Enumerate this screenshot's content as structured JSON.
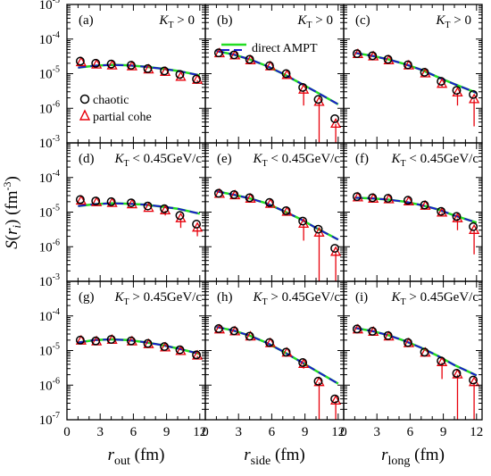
{
  "chart_data": {
    "type": "scatter",
    "y_scale": "log",
    "ylim": [
      1e-07,
      0.001
    ],
    "xlim": [
      0,
      12.5
    ],
    "ylabel_parts": {
      "S": "S",
      "paren_open": "(",
      "r": "r",
      "sub": "i",
      "paren_close": ")",
      "unit": "(fm",
      "unit_exp": "-3",
      "unit_close": ")"
    },
    "y_ticks": [
      {
        "value": 0.001,
        "base": "10",
        "exp": "-3"
      },
      {
        "value": 0.0001,
        "base": "10",
        "exp": "-4"
      },
      {
        "value": 1e-05,
        "base": "10",
        "exp": "-5"
      },
      {
        "value": 1e-06,
        "base": "10",
        "exp": "-6"
      },
      {
        "value": 1e-07,
        "base": "10",
        "exp": "-7"
      }
    ],
    "x_ticks": [
      {
        "value": 0,
        "label": "0"
      },
      {
        "value": 3,
        "label": "3"
      },
      {
        "value": 6,
        "label": "6"
      },
      {
        "value": 9,
        "label": "9"
      },
      {
        "value": 12,
        "label": "12"
      }
    ],
    "x_titles": [
      {
        "main": "r",
        "sub": "out",
        "unit": "(fm)"
      },
      {
        "main": "r",
        "sub": "side",
        "unit": "(fm)"
      },
      {
        "main": "r",
        "sub": "long",
        "unit": "(fm)"
      }
    ],
    "legend_markers": [
      {
        "label": "chaotic",
        "marker": "circle"
      },
      {
        "label": "partial cohe",
        "marker": "triangle"
      }
    ],
    "legend_lines": [
      {
        "label": "direct AMPT"
      }
    ],
    "colors": {
      "chaotic": "#000000",
      "partial": "#e8000b",
      "line_green": "#22dd22",
      "line_blue": "#1a1acc"
    },
    "cut_labels": [
      {
        "k": "K",
        "sub": "T",
        "rest": " > 0"
      },
      {
        "k": "K",
        "sub": "T",
        "rest": " < 0.45GeV/c"
      },
      {
        "k": "K",
        "sub": "T",
        "rest": " > 0.45GeV/c"
      }
    ],
    "x_points": [
      1.2,
      2.6,
      4.0,
      5.8,
      7.3,
      8.8,
      10.2,
      11.7
    ],
    "panels": [
      {
        "letter": "(a)",
        "chaotic": [
          2.3e-05,
          2e-05,
          1.9e-05,
          1.75e-05,
          1.4e-05,
          1.2e-05,
          9.5e-06,
          7e-06
        ],
        "partial": [
          2.1e-05,
          1.8e-05,
          1.7e-05,
          1.6e-05,
          1.3e-05,
          1.1e-05,
          8e-06,
          6.5e-06
        ],
        "err_lo": [
          2.1e-05,
          1.8e-05,
          1.7e-05,
          1.6e-05,
          1.3e-05,
          1.1e-05,
          7e-06,
          5.5e-06
        ],
        "line": [
          [
            1.0,
            1.5e-05
          ],
          [
            2.5,
            1.7e-05
          ],
          [
            4.0,
            1.8e-05
          ],
          [
            5.5,
            1.75e-05
          ],
          [
            7.0,
            1.6e-05
          ],
          [
            8.5,
            1.4e-05
          ],
          [
            10.0,
            1.2e-05
          ],
          [
            12.0,
            9e-06
          ]
        ]
      },
      {
        "letter": "(b)",
        "chaotic": [
          4e-05,
          3.5e-05,
          2.6e-05,
          1.7e-05,
          1e-05,
          4e-06,
          1.8e-06,
          5e-07
        ],
        "partial": [
          3.8e-05,
          3.3e-05,
          2.4e-05,
          1.6e-05,
          9e-06,
          3.4e-06,
          1.5e-06,
          3.5e-07
        ],
        "err_lo": [
          3.8e-05,
          3.3e-05,
          2.4e-05,
          1.6e-05,
          9e-06,
          1.2e-06,
          1e-07,
          1e-07
        ],
        "line": [
          [
            1.0,
            4.5e-05
          ],
          [
            2.5,
            3.6e-05
          ],
          [
            4.0,
            2.6e-05
          ],
          [
            5.5,
            1.7e-05
          ],
          [
            7.0,
            1e-05
          ],
          [
            8.5,
            5.5e-06
          ],
          [
            10.0,
            3e-06
          ],
          [
            12.0,
            1.3e-06
          ]
        ]
      },
      {
        "letter": "(c)",
        "chaotic": [
          3.8e-05,
          3.3e-05,
          2.6e-05,
          1.8e-05,
          1.1e-05,
          6e-06,
          3.3e-06,
          2.5e-06
        ],
        "partial": [
          3.6e-05,
          3.1e-05,
          2.4e-05,
          1.7e-05,
          1e-05,
          5e-06,
          2.8e-06,
          1.8e-06
        ],
        "err_lo": [
          3.6e-05,
          3.1e-05,
          2.4e-05,
          1.7e-05,
          1e-05,
          4e-06,
          1.2e-06,
          3e-07
        ],
        "line": [
          [
            1.0,
            4e-05
          ],
          [
            2.5,
            3.3e-05
          ],
          [
            4.0,
            2.6e-05
          ],
          [
            5.5,
            1.9e-05
          ],
          [
            7.0,
            1.3e-05
          ],
          [
            8.5,
            8e-06
          ],
          [
            10.0,
            5e-06
          ],
          [
            12.0,
            2.8e-06
          ]
        ]
      },
      {
        "letter": "(d)",
        "chaotic": [
          2.3e-05,
          2.1e-05,
          2e-05,
          1.85e-05,
          1.5e-05,
          1.25e-05,
          8e-06,
          4.5e-06
        ],
        "partial": [
          2.1e-05,
          1.9e-05,
          1.8e-05,
          1.65e-05,
          1.3e-05,
          1.1e-05,
          6.5e-06,
          3.5e-06
        ],
        "err_lo": [
          2.1e-05,
          1.9e-05,
          1.8e-05,
          1.65e-05,
          1.3e-05,
          8e-06,
          3.5e-06,
          2e-06
        ],
        "line": [
          [
            1.0,
            1.5e-05
          ],
          [
            2.5,
            1.7e-05
          ],
          [
            4.0,
            1.8e-05
          ],
          [
            5.5,
            1.75e-05
          ],
          [
            7.0,
            1.65e-05
          ],
          [
            8.5,
            1.45e-05
          ],
          [
            10.0,
            1.25e-05
          ],
          [
            12.0,
            9e-06
          ]
        ]
      },
      {
        "letter": "(e)",
        "chaotic": [
          3.5e-05,
          3.2e-05,
          2.6e-05,
          1.9e-05,
          1.1e-05,
          5.5e-06,
          3.2e-06,
          9e-07
        ],
        "partial": [
          3.3e-05,
          3e-05,
          2.4e-05,
          1.7e-05,
          1e-05,
          4.5e-06,
          2.5e-06,
          7e-07
        ],
        "err_lo": [
          3.3e-05,
          3e-05,
          2.4e-05,
          1.7e-05,
          8e-06,
          1.5e-06,
          1e-07,
          1e-07
        ],
        "line": [
          [
            1.0,
            4e-05
          ],
          [
            2.5,
            3.2e-05
          ],
          [
            4.0,
            2.5e-05
          ],
          [
            5.5,
            1.8e-05
          ],
          [
            7.0,
            1.1e-05
          ],
          [
            8.5,
            6.5e-06
          ],
          [
            10.0,
            3.5e-06
          ],
          [
            12.0,
            1.6e-06
          ]
        ]
      },
      {
        "letter": "(f)",
        "chaotic": [
          2.8e-05,
          2.6e-05,
          2.5e-05,
          2.2e-05,
          1.6e-05,
          1.05e-05,
          7.5e-06,
          3.8e-06
        ],
        "partial": [
          2.6e-05,
          2.4e-05,
          2.3e-05,
          2e-05,
          1.5e-05,
          9.5e-06,
          6.5e-06,
          3e-06
        ],
        "err_lo": [
          2.6e-05,
          2.4e-05,
          2.3e-05,
          2e-05,
          1.5e-05,
          8e-06,
          3e-06,
          6e-07
        ],
        "line": [
          [
            1.0,
            2.6e-05
          ],
          [
            2.5,
            2.5e-05
          ],
          [
            4.0,
            2.3e-05
          ],
          [
            5.5,
            2e-05
          ],
          [
            7.0,
            1.6e-05
          ],
          [
            8.5,
            1.2e-05
          ],
          [
            10.0,
            8e-06
          ],
          [
            12.0,
            5e-06
          ]
        ]
      },
      {
        "letter": "(g)",
        "chaotic": [
          2e-05,
          1.9e-05,
          2.1e-05,
          1.9e-05,
          1.6e-05,
          1.3e-05,
          1.05e-05,
          7.5e-06
        ],
        "partial": [
          1.9e-05,
          1.8e-05,
          2e-05,
          1.8e-05,
          1.5e-05,
          1.2e-05,
          9.5e-06,
          7e-06
        ],
        "err_lo": [
          1.9e-05,
          1.8e-05,
          2e-05,
          1.8e-05,
          1.5e-05,
          1.2e-05,
          8.5e-06,
          6e-06
        ],
        "line": [
          [
            1.0,
            1.7e-05
          ],
          [
            2.5,
            2e-05
          ],
          [
            4.0,
            2.1e-05
          ],
          [
            5.5,
            2e-05
          ],
          [
            7.0,
            1.75e-05
          ],
          [
            8.5,
            1.45e-05
          ],
          [
            10.0,
            1.15e-05
          ],
          [
            12.0,
            8e-06
          ]
        ]
      },
      {
        "letter": "(h)",
        "chaotic": [
          4.3e-05,
          3.7e-05,
          2.6e-05,
          1.7e-05,
          9e-06,
          4.5e-06,
          1.3e-06,
          4e-07
        ],
        "partial": [
          4e-05,
          3.5e-05,
          2.5e-05,
          1.6e-05,
          8.5e-06,
          4e-06,
          1.2e-06,
          3.5e-07
        ],
        "err_lo": [
          4e-05,
          3.5e-05,
          2.5e-05,
          1.6e-05,
          8.5e-06,
          3e-06,
          1e-07,
          1e-07
        ],
        "line": [
          [
            1.0,
            4.8e-05
          ],
          [
            2.5,
            3.8e-05
          ],
          [
            4.0,
            2.7e-05
          ],
          [
            5.5,
            1.7e-05
          ],
          [
            7.0,
            9.5e-06
          ],
          [
            8.5,
            5e-06
          ],
          [
            10.0,
            2.6e-06
          ],
          [
            12.0,
            1.1e-06
          ]
        ]
      },
      {
        "letter": "(i)",
        "chaotic": [
          4.2e-05,
          3.6e-05,
          2.7e-05,
          1.7e-05,
          9e-06,
          5e-06,
          2.2e-06,
          1.4e-06
        ],
        "partial": [
          4e-05,
          3.4e-05,
          2.5e-05,
          1.6e-05,
          8.5e-06,
          4.5e-06,
          2e-06,
          1.2e-06
        ],
        "err_lo": [
          4e-05,
          3.4e-05,
          2.5e-05,
          1.6e-05,
          8.5e-06,
          1.5e-06,
          1e-07,
          1e-07
        ],
        "line": [
          [
            1.0,
            4.5e-05
          ],
          [
            2.5,
            3.7e-05
          ],
          [
            4.0,
            2.8e-05
          ],
          [
            5.5,
            1.9e-05
          ],
          [
            7.0,
            1.2e-05
          ],
          [
            8.5,
            7e-06
          ],
          [
            10.0,
            3.8e-06
          ],
          [
            12.0,
            1.9e-06
          ]
        ]
      }
    ]
  }
}
